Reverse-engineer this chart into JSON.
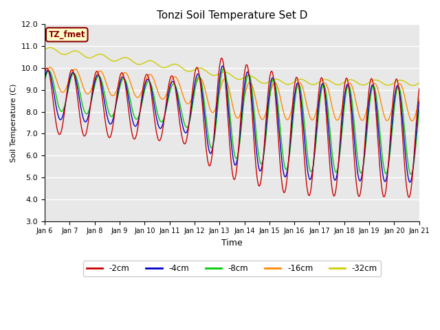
{
  "title": "Tonzi Soil Temperature Set D",
  "xlabel": "Time",
  "ylabel": "Soil Temperature (C)",
  "ylim": [
    3.0,
    12.0
  ],
  "yticks": [
    3.0,
    4.0,
    5.0,
    6.0,
    7.0,
    8.0,
    9.0,
    10.0,
    11.0,
    12.0
  ],
  "xtick_labels": [
    "Jan 6",
    "Jan 7",
    "Jan 8",
    "Jan 9",
    "Jan 10",
    "Jan 11",
    "Jan 12",
    "Jan 13",
    "Jan 14",
    "Jan 15",
    "Jan 16",
    "Jan 17",
    "Jan 18",
    "Jan 19",
    "Jan 20",
    "Jan 21"
  ],
  "series_colors": {
    "-2cm": "#cc0000",
    "-4cm": "#0000cc",
    "-8cm": "#00cc00",
    "-16cm": "#ff8800",
    "-32cm": "#cccc00"
  },
  "annotation_text": "TZ_fmet",
  "annotation_color": "#8b0000",
  "annotation_bg": "#ffffcc",
  "plot_bg_color": "#e8e8e8",
  "fig_bg_color": "#ffffff",
  "n_points": 1500,
  "days": 15
}
